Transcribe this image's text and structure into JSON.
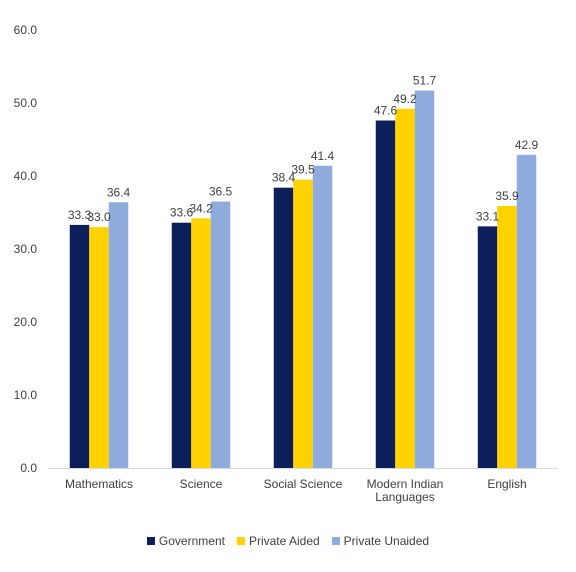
{
  "chart_data": {
    "type": "bar",
    "categories": [
      [
        "Mathematics"
      ],
      [
        "Science"
      ],
      [
        "Social Science"
      ],
      [
        "Modern Indian",
        "Languages"
      ],
      [
        "English"
      ]
    ],
    "series": [
      {
        "name": "Government",
        "color": "#0c1f5b",
        "values": [
          33.3,
          33.6,
          38.4,
          47.6,
          33.1
        ]
      },
      {
        "name": "Private Aided",
        "color": "#ffd200",
        "values": [
          33.0,
          34.2,
          39.5,
          49.2,
          35.9
        ]
      },
      {
        "name": "Private Unaided",
        "color": "#8faadc",
        "values": [
          36.4,
          36.5,
          41.4,
          51.7,
          42.9
        ]
      }
    ],
    "ylim": [
      0,
      60
    ],
    "yticks": [
      "0.0",
      "10.0",
      "20.0",
      "30.0",
      "40.0",
      "50.0",
      "60.0"
    ],
    "data_labels": [
      [
        "33.3",
        "33.6",
        "38.4",
        "47.6",
        "33.1"
      ],
      [
        "33.0",
        "34.2",
        "39.5",
        "49.2",
        "35.9"
      ],
      [
        "36.4",
        "36.5",
        "41.4",
        "51.7",
        "42.9"
      ]
    ],
    "grid": false,
    "legend_position": "bottom"
  }
}
